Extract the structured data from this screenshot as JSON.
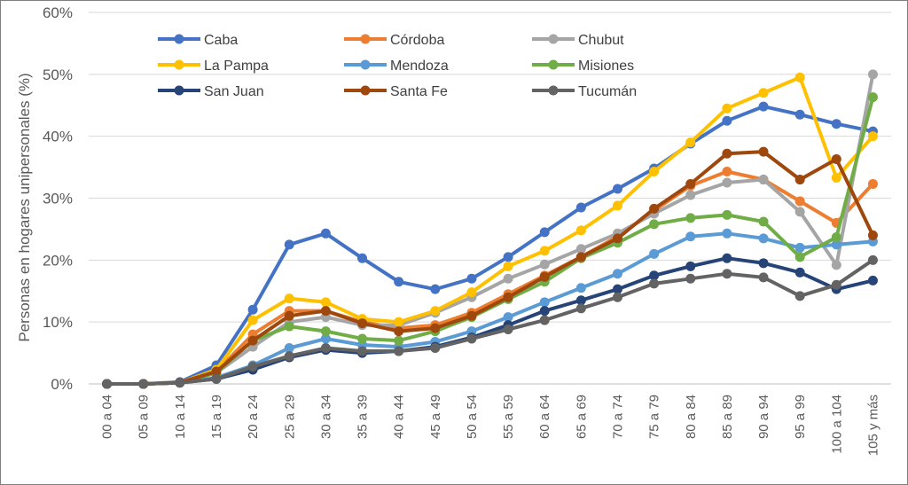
{
  "chart_data": {
    "type": "line",
    "title": "",
    "xlabel": "",
    "ylabel": "Personas en hogares unipersonales (%)",
    "ylim": [
      0,
      60
    ],
    "y_ticks": [
      "0%",
      "10%",
      "20%",
      "30%",
      "40%",
      "50%",
      "60%"
    ],
    "grid": "horizontal",
    "legend_position": "top-left, inside",
    "categories": [
      "00 a 04",
      "05 a 09",
      "10 a 14",
      "15 a 19",
      "20 a 24",
      "25 a 29",
      "30 a 34",
      "35 a 39",
      "40 a 44",
      "45 a 49",
      "50 a 54",
      "55 a 59",
      "60 a 64",
      "65 a 69",
      "70 a 74",
      "75 a 79",
      "80 a 84",
      "85 a 89",
      "90 a 94",
      "95 a 99",
      "100 a 104",
      "105 y más"
    ],
    "series": [
      {
        "name": "Caba",
        "color": "#4472c4",
        "values": [
          0,
          0,
          0.3,
          3.0,
          12.0,
          22.5,
          24.3,
          20.3,
          16.5,
          15.3,
          17.0,
          20.5,
          24.5,
          28.5,
          31.5,
          34.8,
          38.8,
          42.5,
          44.8,
          43.5,
          42.0,
          40.8
        ]
      },
      {
        "name": "Córdoba",
        "color": "#ed7d31",
        "values": [
          0,
          0,
          0.2,
          2.0,
          8.0,
          11.8,
          11.8,
          10.0,
          9.0,
          9.5,
          11.5,
          14.5,
          17.5,
          20.5,
          23.8,
          28.0,
          32.0,
          34.3,
          33.0,
          29.5,
          26.0,
          32.3
        ]
      },
      {
        "name": "Chubut",
        "color": "#a5a5a5",
        "values": [
          0,
          0,
          0.2,
          1.8,
          6.0,
          10.0,
          10.8,
          9.5,
          9.5,
          11.5,
          14.0,
          17.0,
          19.3,
          21.8,
          24.3,
          27.5,
          30.5,
          32.5,
          33.0,
          27.8,
          19.2,
          50.0
        ]
      },
      {
        "name": "La Pampa",
        "color": "#ffc000",
        "values": [
          0,
          0,
          0.2,
          2.3,
          10.3,
          13.8,
          13.2,
          10.5,
          10.0,
          11.8,
          14.8,
          19.0,
          21.5,
          24.8,
          28.8,
          34.3,
          39.0,
          44.5,
          47.0,
          49.5,
          33.3,
          40.0
        ]
      },
      {
        "name": "Mendoza",
        "color": "#5b9bd5",
        "values": [
          0,
          0,
          0.2,
          1.0,
          3.0,
          5.8,
          7.3,
          6.3,
          6.0,
          6.8,
          8.5,
          10.8,
          13.2,
          15.5,
          17.8,
          21.0,
          23.8,
          24.3,
          23.5,
          22.0,
          22.5,
          23.0
        ]
      },
      {
        "name": "Misiones",
        "color": "#70ad47",
        "values": [
          0,
          0,
          0.2,
          1.8,
          7.0,
          9.3,
          8.5,
          7.3,
          7.0,
          8.5,
          10.8,
          13.7,
          16.5,
          20.3,
          22.8,
          25.8,
          26.8,
          27.3,
          26.2,
          20.5,
          23.7,
          46.3
        ]
      },
      {
        "name": "San Juan",
        "color": "#264478",
        "values": [
          0,
          0,
          0.2,
          0.8,
          2.3,
          4.3,
          5.5,
          5.0,
          5.3,
          6.0,
          7.5,
          9.5,
          11.8,
          13.5,
          15.3,
          17.5,
          19.0,
          20.3,
          19.5,
          18.0,
          15.3,
          16.7
        ]
      },
      {
        "name": "Santa Fe",
        "color": "#9e480e",
        "values": [
          0,
          0,
          0.2,
          2.0,
          7.0,
          11.0,
          11.8,
          9.8,
          8.5,
          9.0,
          11.0,
          14.0,
          17.3,
          20.5,
          23.5,
          28.3,
          32.3,
          37.2,
          37.5,
          33.0,
          36.3,
          24.0
        ]
      },
      {
        "name": "Tucumán",
        "color": "#636363",
        "values": [
          0,
          0,
          0.2,
          0.8,
          2.8,
          4.5,
          5.8,
          5.3,
          5.3,
          5.8,
          7.3,
          8.8,
          10.3,
          12.2,
          14.0,
          16.2,
          17.0,
          17.8,
          17.2,
          14.2,
          16.0,
          20.0
        ]
      }
    ]
  }
}
